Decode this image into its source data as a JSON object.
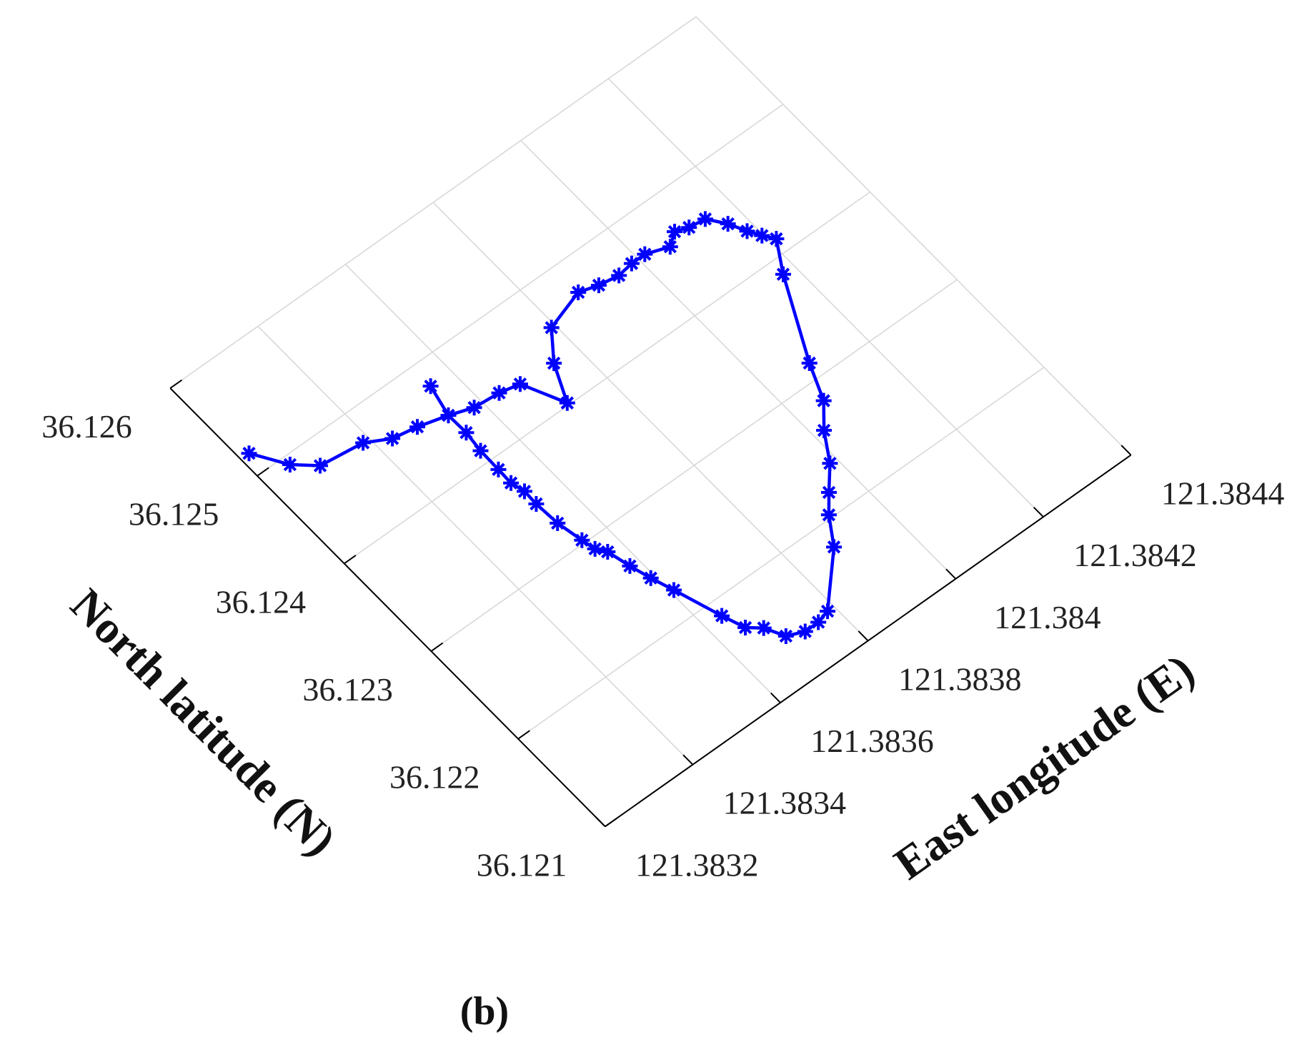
{
  "chart_data": {
    "type": "line",
    "xlabel": "East longitude (E)",
    "ylabel": "North latitude (N)",
    "caption": "(b)",
    "xlim": [
      121.3832,
      121.3844
    ],
    "ylim": [
      36.121,
      36.126
    ],
    "xticks": [
      121.3832,
      121.3834,
      121.3836,
      121.3838,
      121.384,
      121.3842,
      121.3844
    ],
    "yticks": [
      36.121,
      36.122,
      36.123,
      36.124,
      36.125,
      36.126
    ],
    "grid": true,
    "color": "#0000ff",
    "marker": "asterisk",
    "x": [
      121.383219,
      121.383259,
      121.383298,
      121.383386,
      121.383431,
      121.38348,
      121.383537,
      121.383582,
      121.383635,
      121.383675,
      121.383713,
      121.383748,
      121.383792,
      121.383875,
      121.383912,
      121.383952,
      121.383985,
      121.384015,
      121.384059,
      121.384085,
      121.38411,
      121.384143,
      121.384167,
      121.384183,
      121.384197,
      121.384212,
      121.384174,
      121.384091,
      121.38406,
      121.384021,
      121.383985,
      121.383945,
      121.383915,
      121.383879,
      121.383785,
      121.383758,
      121.383728,
      121.383696,
      121.383677,
      121.383653,
      121.383637,
      121.383607,
      121.383592,
      121.38358,
      121.383569,
      121.383556,
      121.38355,
      121.38354,
      121.383537,
      121.383538,
      121.383531,
      121.383532,
      121.383533,
      121.383538,
      121.383537,
      121.383552
    ],
    "values": [
      36.12519,
      36.12492,
      36.12477,
      36.12472,
      36.12461,
      36.12457,
      36.1245,
      36.12443,
      36.12441,
      36.12437,
      36.12402,
      36.12435,
      36.1246,
      36.12471,
      36.12466,
      36.12463,
      36.12465,
      36.12465,
      36.12458,
      36.12466,
      36.12462,
      36.1246,
      36.12446,
      36.12432,
      36.12422,
      36.12413,
      36.12386,
      36.12314,
      36.12282,
      36.12262,
      36.12237,
      36.12218,
      36.12203,
      36.12179,
      36.12139,
      36.12136,
      36.12136,
      36.12142,
      36.12158,
      36.12167,
      36.12186,
      36.12226,
      36.12245,
      36.12263,
      36.12283,
      36.12291,
      36.12303,
      36.12326,
      36.12349,
      36.12363,
      36.12375,
      36.1239,
      36.12411,
      36.1243,
      36.1245,
      36.12478
    ]
  }
}
